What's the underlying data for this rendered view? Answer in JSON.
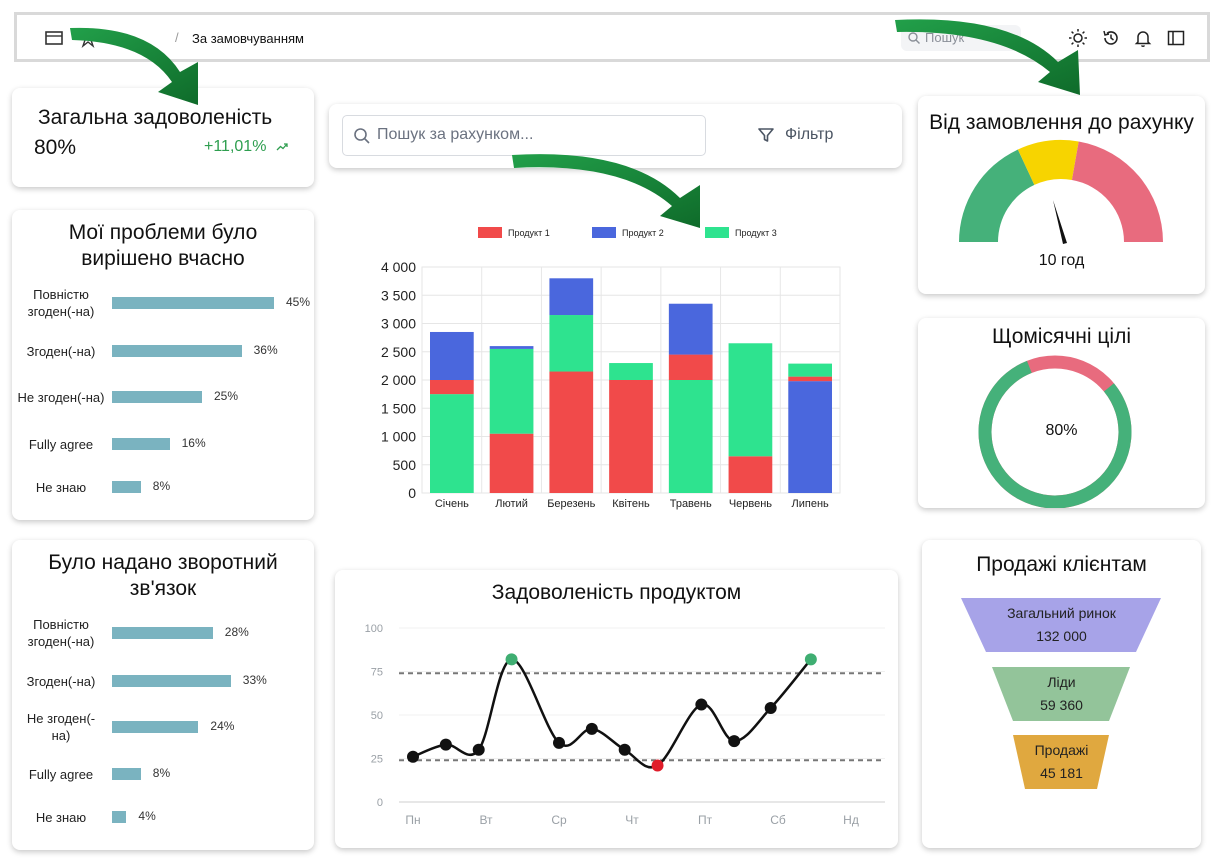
{
  "topbar": {
    "breadcrumb": "За замовчуванням",
    "search_placeholder": "Пошук"
  },
  "kpi": {
    "title": "Загальна задоволеність",
    "value": "80%",
    "change": "+11,01%"
  },
  "survey1": {
    "title_line1": "Мої проблеми було",
    "title_line2": "вирішено вчасно",
    "rows": [
      {
        "label1": "Повністю",
        "label2": "згоден(-на)",
        "value": "45%",
        "pct": 45
      },
      {
        "label1": "Згоден(-на)",
        "label2": "",
        "value": "36%",
        "pct": 36
      },
      {
        "label1": "Не згоден(-на)",
        "label2": "",
        "value": "25%",
        "pct": 25
      },
      {
        "label1": "Fully agree",
        "label2": "",
        "value": "16%",
        "pct": 16
      },
      {
        "label1": "Не знаю",
        "label2": "",
        "value": "8%",
        "pct": 8
      }
    ]
  },
  "survey2": {
    "title_line1": "Було надано зворотний",
    "title_line2": "зв'язок",
    "rows": [
      {
        "label1": "Повністю",
        "label2": "згоден(-на)",
        "value": "28%",
        "pct": 28
      },
      {
        "label1": "Згоден(-на)",
        "label2": "",
        "value": "33%",
        "pct": 33
      },
      {
        "label1": "Не згоден(-",
        "label2": "на)",
        "value": "24%",
        "pct": 24
      },
      {
        "label1": "Fully agree",
        "label2": "",
        "value": "8%",
        "pct": 8
      },
      {
        "label1": "Не знаю",
        "label2": "",
        "value": "4%",
        "pct": 4
      }
    ]
  },
  "invoice_search": {
    "placeholder": "Пошук за рахунком...",
    "filter_label": "Фільтр"
  },
  "gauge": {
    "title": "Від замовлення до рахунку",
    "value_label": "10 год"
  },
  "goals": {
    "title": "Щомісячні цілі",
    "value_label": "80%",
    "progress_fraction": 0.8
  },
  "funnel": {
    "title": "Продажі клієнтам",
    "stages": [
      {
        "name": "Загальний ринок",
        "value": "132 000",
        "color": "#a7a3e8"
      },
      {
        "name": "Ліди",
        "value": "59 360",
        "color": "#93c49a"
      },
      {
        "name": "Продажі",
        "value": "45 181",
        "color": "#e0a83f"
      }
    ]
  },
  "chart_data": [
    {
      "type": "bar",
      "stacked": true,
      "categories": [
        "Січень",
        "Лютий",
        "Березень",
        "Квітень",
        "Травень",
        "Червень",
        "Липень"
      ],
      "series": [
        {
          "name": "Продукт 1",
          "color": "#f14a4a",
          "values": [
            250,
            1050,
            2150,
            2000,
            450,
            650,
            80
          ]
        },
        {
          "name": "Продукт 2",
          "color": "#4a67dd",
          "values": [
            850,
            50,
            650,
            0,
            900,
            0,
            1980
          ]
        },
        {
          "name": "Продукт 3",
          "color": "#2ee38f",
          "values": [
            1750,
            1500,
            1000,
            300,
            2000,
            2000,
            230
          ]
        }
      ],
      "series_order_bottom_to_top": [
        [
          "Продукт 3",
          "Продукт 1",
          "Продукт 2"
        ],
        [
          "Продукт 1",
          "Продукт 3",
          "Продукт 2"
        ],
        [
          "Продукт 1",
          "Продукт 3",
          "Продукт 2"
        ],
        [
          "Продукт 1",
          "Продукт 3",
          "Продукт 2"
        ],
        [
          "Продукт 3",
          "Продукт 1",
          "Продукт 2"
        ],
        [
          "Продукт 2",
          "Продукт 1",
          "Продукт 3"
        ],
        [
          "Продукт 2",
          "Продукт 1",
          "Продукт 3"
        ]
      ],
      "ylim": [
        0,
        4000
      ],
      "yticks": [
        "0",
        "500",
        "1 000",
        "1 500",
        "2 000",
        "2 500",
        "3 000",
        "3 500",
        "4 000"
      ],
      "legend_position": "top",
      "grid": true
    },
    {
      "type": "line",
      "title": "Задоволеність продуктом",
      "categories": [
        "Пн",
        "Вт",
        "Ср",
        "Чт",
        "Пт",
        "Сб",
        "Нд"
      ],
      "yticks": [
        "0",
        "25",
        "50",
        "75",
        "100"
      ],
      "ylim": [
        0,
        100
      ],
      "points": [
        {
          "x": 0,
          "y": 26
        },
        {
          "x": 0.45,
          "y": 33
        },
        {
          "x": 0.9,
          "y": 30
        },
        {
          "x": 1.35,
          "y": 82
        },
        {
          "x": 2.0,
          "y": 34
        },
        {
          "x": 2.45,
          "y": 42
        },
        {
          "x": 2.9,
          "y": 30
        },
        {
          "x": 3.35,
          "y": 21
        },
        {
          "x": 3.95,
          "y": 56
        },
        {
          "x": 4.4,
          "y": 35
        },
        {
          "x": 4.9,
          "y": 54
        },
        {
          "x": 5.45,
          "y": 82
        }
      ],
      "highlight_high": [
        3,
        11
      ],
      "highlight_low": [
        7
      ],
      "thresholds": [
        74,
        24
      ]
    }
  ]
}
